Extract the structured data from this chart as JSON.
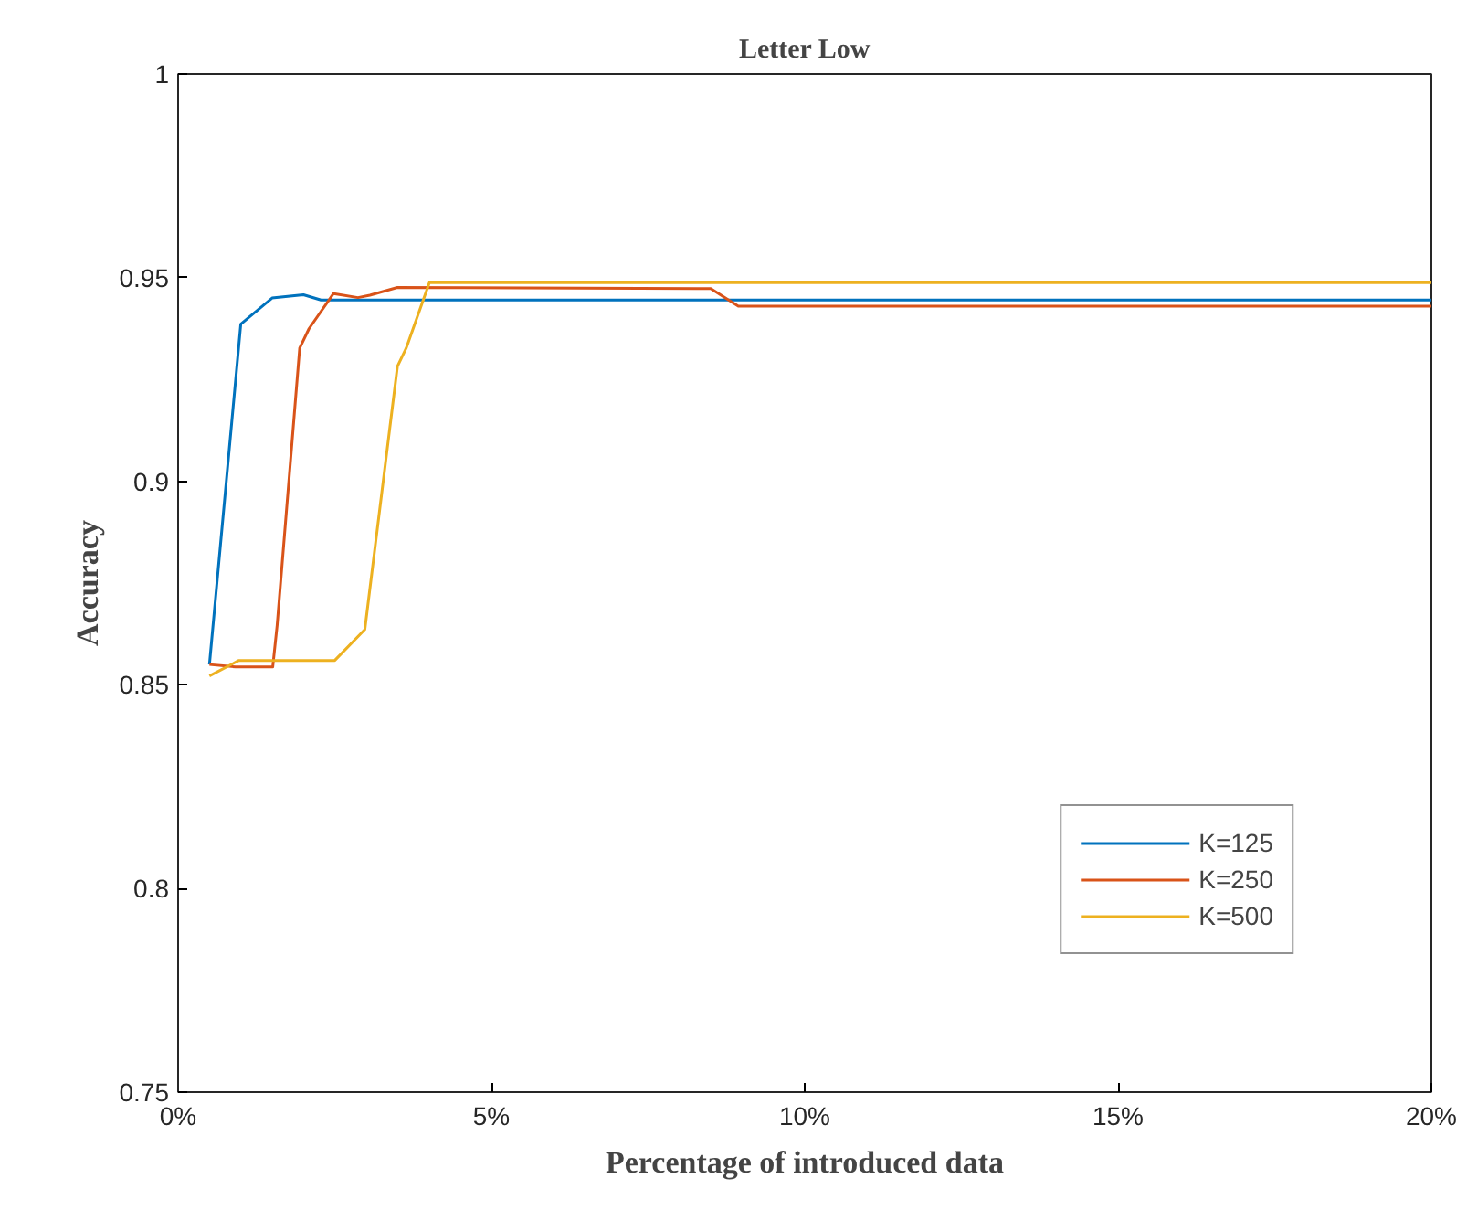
{
  "chart_data": {
    "type": "line",
    "title": "Letter Low",
    "xlabel": "Percentage of introduced data",
    "ylabel": "Accuracy",
    "xlim": [
      0,
      0.2
    ],
    "ylim": [
      0.75,
      1
    ],
    "xticks": [
      {
        "value": 0,
        "label": "0%"
      },
      {
        "value": 0.05,
        "label": "5%"
      },
      {
        "value": 0.1,
        "label": "10%"
      },
      {
        "value": 0.15,
        "label": "15%"
      },
      {
        "value": 0.2,
        "label": "20%"
      }
    ],
    "yticks": [
      0.75,
      {
        "value": 0.8,
        "label": "0.8"
      },
      0.85,
      {
        "value": 0.9,
        "label": "0.9"
      },
      0.95,
      {
        "value": 1,
        "label": "1"
      }
    ],
    "grid": false,
    "legend": "bottom right",
    "marker": "none",
    "line_style": "solid",
    "series": [
      {
        "name": "K=125",
        "color": "#0072bd",
        "x": [
          0.005,
          0.01,
          0.015,
          0.02,
          0.0228,
          0.2
        ],
        "values": [
          0.855,
          0.9386,
          0.945,
          0.9458,
          0.9445,
          0.9445
        ]
      },
      {
        "name": "K=250",
        "color": "#d95319",
        "x": [
          0.005,
          0.0092,
          0.0151,
          0.0158,
          0.0194,
          0.0209,
          0.0248,
          0.0287,
          0.0306,
          0.035,
          0.085,
          0.0894,
          0.2
        ],
        "values": [
          0.855,
          0.8544,
          0.8544,
          0.8646,
          0.9327,
          0.9375,
          0.9461,
          0.9451,
          0.9457,
          0.9476,
          0.9473,
          0.943,
          0.943
        ]
      },
      {
        "name": "K=500",
        "color": "#edb120",
        "x": [
          0.005,
          0.0097,
          0.025,
          0.0298,
          0.035,
          0.0364,
          0.0401,
          0.2
        ],
        "values": [
          0.8522,
          0.856,
          0.856,
          0.8636,
          0.9282,
          0.9327,
          0.9488,
          0.9488
        ]
      }
    ]
  }
}
